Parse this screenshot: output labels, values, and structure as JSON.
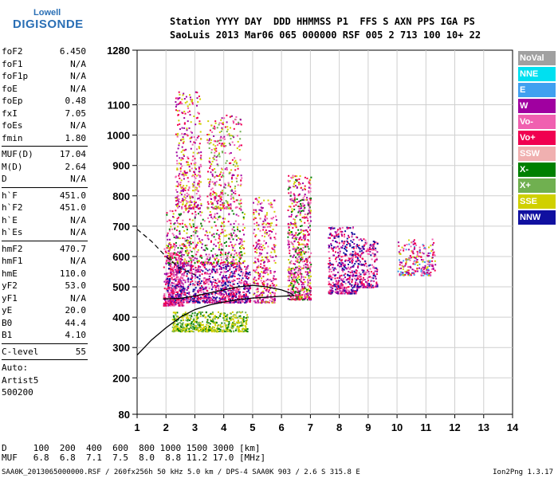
{
  "logo": {
    "line1": "Lowell",
    "line2": "DIGISONDE"
  },
  "header": {
    "line1": "Station YYYY DAY  DDD HHMMSS P1  FFS S AXN PPS IGA PS",
    "line2": "SaoLuis 2013 Mar06 065 000000 RSF 005 2 713 100 10+ 22"
  },
  "params": [
    {
      "k": "foF2",
      "v": "6.450"
    },
    {
      "k": "foF1",
      "v": "N/A"
    },
    {
      "k": "foF1p",
      "v": "N/A"
    },
    {
      "k": "foE",
      "v": "N/A"
    },
    {
      "k": "foEp",
      "v": "0.48"
    },
    {
      "k": "fxI",
      "v": "7.05"
    },
    {
      "k": "foEs",
      "v": "N/A"
    },
    {
      "k": "fmin",
      "v": "1.80"
    },
    {
      "sep": true
    },
    {
      "k": "MUF(D)",
      "v": "17.04"
    },
    {
      "k": "M(D)",
      "v": "2.64"
    },
    {
      "k": "D",
      "v": "N/A"
    },
    {
      "sep": true
    },
    {
      "k": "h`F",
      "v": "451.0"
    },
    {
      "k": "h`F2",
      "v": "451.0"
    },
    {
      "k": "h`E",
      "v": "N/A"
    },
    {
      "k": "h`Es",
      "v": "N/A"
    },
    {
      "sep": true
    },
    {
      "k": "hmF2",
      "v": "470.7"
    },
    {
      "k": "hmF1",
      "v": "N/A"
    },
    {
      "k": "hmE",
      "v": "110.0"
    },
    {
      "k": "yF2",
      "v": "53.0"
    },
    {
      "k": "yF1",
      "v": "N/A"
    },
    {
      "k": "yE",
      "v": "20.0"
    },
    {
      "k": "B0",
      "v": "44.4"
    },
    {
      "k": "B1",
      "v": "4.10"
    },
    {
      "sep": true
    },
    {
      "k": "C-level",
      "v": "55"
    },
    {
      "sep": true
    }
  ],
  "auto": [
    "Auto:",
    "Artist5",
    "500200"
  ],
  "legend": [
    {
      "label": "NoVal",
      "color": "#a0a0a0"
    },
    {
      "label": "NNE",
      "color": "#00e0f0"
    },
    {
      "label": "E",
      "color": "#40a0f0"
    },
    {
      "label": "W",
      "color": "#a000a0"
    },
    {
      "label": "Vo-",
      "color": "#f060b0"
    },
    {
      "label": "Vo+",
      "color": "#f00050"
    },
    {
      "label": "SSW",
      "color": "#f0b0b0"
    },
    {
      "label": "X-",
      "color": "#008000"
    },
    {
      "label": "X+",
      "color": "#70b050"
    },
    {
      "label": "SSE",
      "color": "#d0d000"
    },
    {
      "label": "NNW",
      "color": "#1010a0"
    }
  ],
  "bottom": {
    "line1": "D     100  200  400  600  800 1000 1500 3000 [km]",
    "line2": "MUF   6.8  6.8  7.1  7.5  8.0  8.8 11.2 17.0 [MHz]"
  },
  "footer": "SAA0K_2013065000000.RSF / 260fx256h 50 kHz 5.0 km / DPS-4 SAA0K 903 / 2.6 S 315.8 E",
  "version": "Ion2Png 1.3.17",
  "chart_data": {
    "type": "scatter",
    "xlabel": "",
    "ylabel": "",
    "xlim": [
      1,
      14
    ],
    "ylim": [
      80,
      1280
    ],
    "xticks": [
      1,
      2,
      3,
      4,
      5,
      6,
      7,
      8,
      9,
      10,
      11,
      12,
      13,
      14
    ],
    "yticks": [
      80,
      200,
      300,
      400,
      500,
      600,
      700,
      800,
      900,
      1000,
      1100,
      1280
    ],
    "grid": true,
    "clusters": [
      {
        "x": [
          1.9,
          2.6
        ],
        "y": [
          440,
          640
        ],
        "w": 70,
        "colors": [
          "#f00050",
          "#f060b0",
          "#a000a0"
        ]
      },
      {
        "x": [
          2.0,
          4.9
        ],
        "y": [
          450,
          580
        ],
        "w": 260,
        "colors": [
          "#f00050",
          "#f060b0",
          "#a000a0",
          "#1010a0"
        ]
      },
      {
        "x": [
          2.0,
          4.7
        ],
        "y": [
          580,
          760
        ],
        "w": 130,
        "colors": [
          "#f060b0",
          "#a000a0",
          "#f00050",
          "#008000",
          "#d0d000"
        ]
      },
      {
        "x": [
          2.3,
          3.2
        ],
        "y": [
          760,
          1150
        ],
        "w": 90,
        "colors": [
          "#a000a0",
          "#f060b0",
          "#f00050",
          "#d0d000"
        ]
      },
      {
        "x": [
          3.4,
          4.6
        ],
        "y": [
          760,
          1070
        ],
        "w": 90,
        "colors": [
          "#a000a0",
          "#f060b0",
          "#f00050",
          "#d0d000",
          "#70b050"
        ]
      },
      {
        "x": [
          2.2,
          4.8
        ],
        "y": [
          355,
          420
        ],
        "w": 130,
        "colors": [
          "#d0d000",
          "#d0d000",
          "#70b050",
          "#008000"
        ]
      },
      {
        "x": [
          5.0,
          5.8
        ],
        "y": [
          450,
          800
        ],
        "w": 90,
        "colors": [
          "#f00050",
          "#f060b0",
          "#d0d000",
          "#a000a0"
        ]
      },
      {
        "x": [
          6.2,
          7.0
        ],
        "y": [
          460,
          870
        ],
        "w": 160,
        "colors": [
          "#f00050",
          "#f060b0",
          "#d0d000",
          "#a000a0",
          "#008000"
        ]
      },
      {
        "x": [
          7.6,
          8.6
        ],
        "y": [
          480,
          700
        ],
        "w": 120,
        "colors": [
          "#f00050",
          "#f060b0",
          "#a000a0",
          "#1010a0"
        ]
      },
      {
        "x": [
          8.6,
          9.3
        ],
        "y": [
          500,
          660
        ],
        "w": 60,
        "colors": [
          "#f00050",
          "#f060b0",
          "#a000a0",
          "#1010a0"
        ]
      },
      {
        "x": [
          10.0,
          11.3
        ],
        "y": [
          540,
          660
        ],
        "w": 60,
        "colors": [
          "#f00050",
          "#f060b0",
          "#a000a0",
          "#d0d000",
          "#40a0f0"
        ]
      }
    ],
    "profile_curve": [
      [
        1.0,
        275
      ],
      [
        1.5,
        325
      ],
      [
        2.0,
        365
      ],
      [
        2.5,
        400
      ],
      [
        3.0,
        425
      ],
      [
        3.5,
        440
      ],
      [
        4.0,
        450
      ],
      [
        4.5,
        458
      ],
      [
        5.0,
        463
      ],
      [
        5.5,
        466
      ],
      [
        6.0,
        469
      ],
      [
        6.4,
        470.7
      ]
    ],
    "trace_curve": [
      [
        1.9,
        460
      ],
      [
        2.5,
        462
      ],
      [
        3.0,
        470
      ],
      [
        3.5,
        480
      ],
      [
        4.0,
        490
      ],
      [
        4.5,
        500
      ],
      [
        5.0,
        505
      ],
      [
        5.5,
        500
      ],
      [
        6.0,
        490
      ],
      [
        6.3,
        480
      ],
      [
        6.45,
        470
      ]
    ],
    "dashed_curve": [
      [
        1.0,
        690
      ],
      [
        1.5,
        650
      ],
      [
        2.0,
        600
      ],
      [
        2.5,
        560
      ],
      [
        3.0,
        540
      ]
    ]
  }
}
